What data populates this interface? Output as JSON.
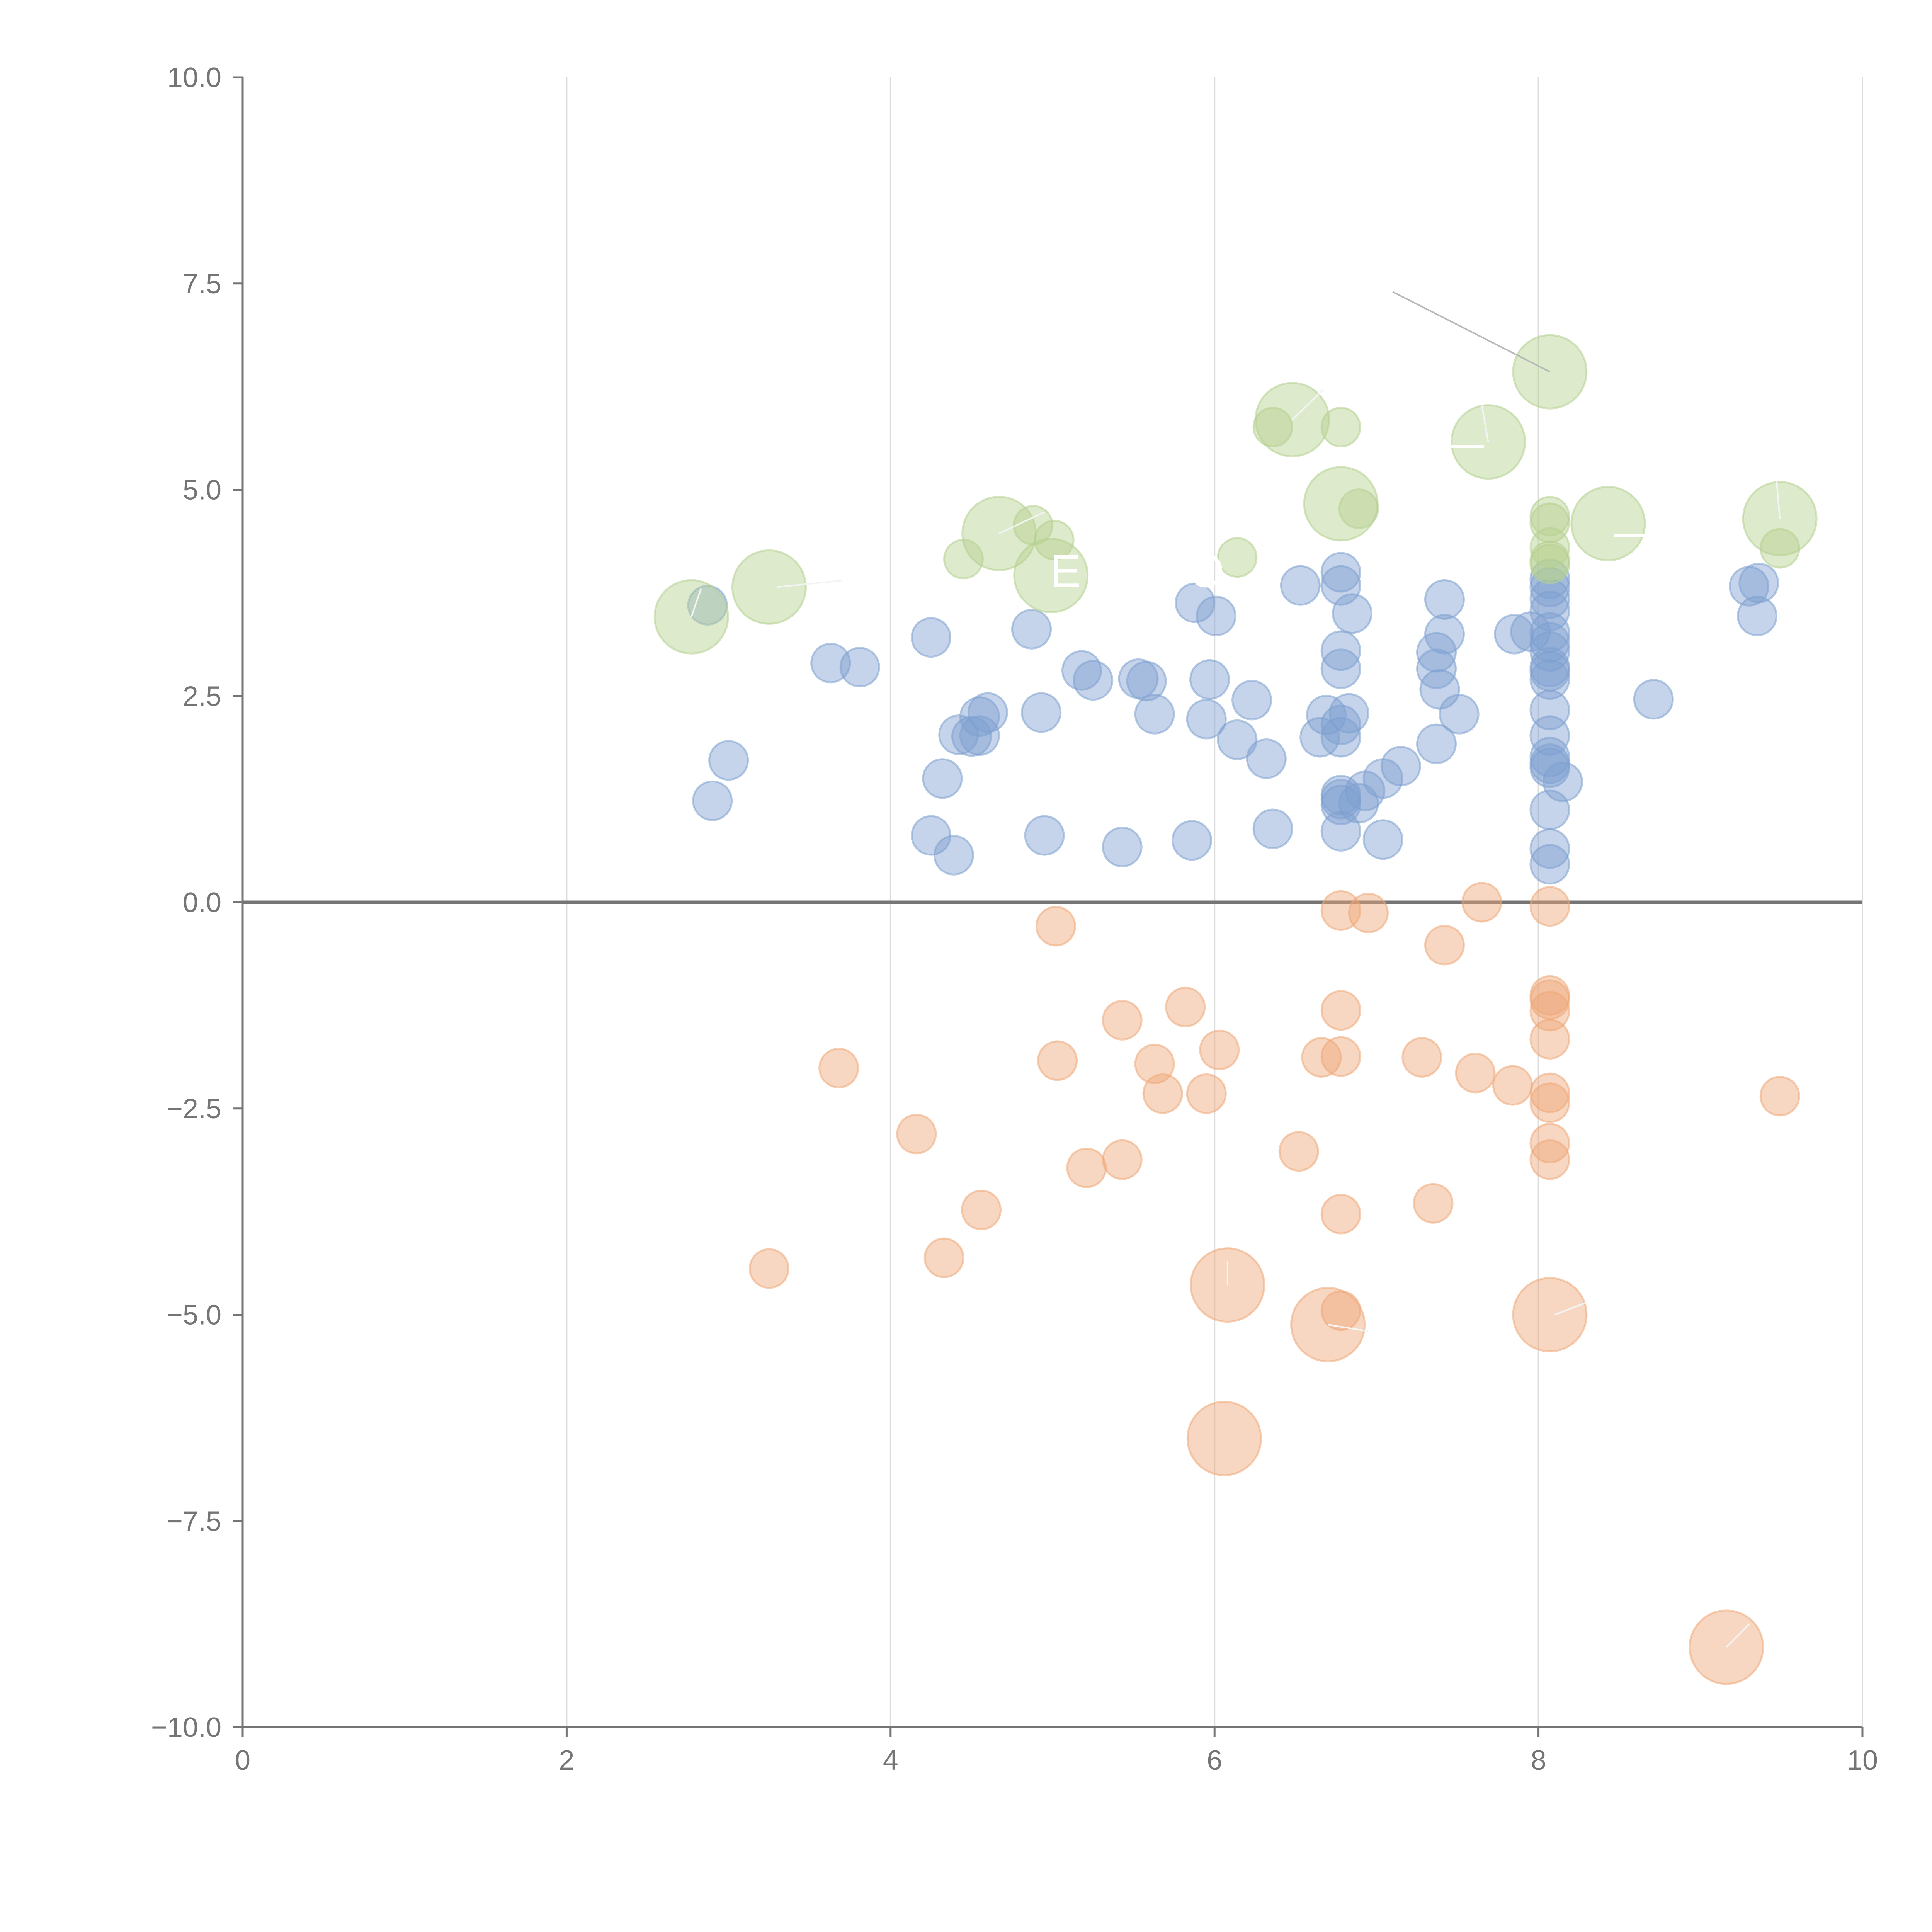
{
  "chart_data": {
    "type": "scatter",
    "title": "",
    "xlabel": "",
    "ylabel": "",
    "xlim": [
      0,
      10
    ],
    "ylim": [
      -10,
      10
    ],
    "x_ticks": [
      0,
      2,
      4,
      6,
      8,
      10
    ],
    "y_ticks": [
      -10.0,
      -7.5,
      -5.0,
      -2.5,
      0.0,
      2.5,
      5.0,
      7.5,
      10.0
    ],
    "x_tick_labels": [
      "0",
      "2",
      "4",
      "6",
      "8",
      "10"
    ],
    "y_tick_labels": [
      "−10.0",
      "−7.5",
      "−5.0",
      "−2.5",
      "0.0",
      "2.5",
      "5.0",
      "7.5",
      "10.0"
    ],
    "x_grid": true,
    "y_grid": false,
    "reference_line_y": 0,
    "colors": {
      "positive": "#7ea0d0",
      "negative": "#eea778",
      "highlight": "#b5d08f",
      "zero_line": "#757575",
      "grid": "#dcdcdc",
      "text": "#757575",
      "leader": "#f4f4f4",
      "leader_dark": "#b8b8b8"
    },
    "series": [
      {
        "name": "positive",
        "size_unit": "small",
        "points": [
          [
            2.87,
            3.6
          ],
          [
            2.9,
            1.23
          ],
          [
            3.0,
            1.72
          ],
          [
            3.63,
            2.9
          ],
          [
            3.81,
            2.85
          ],
          [
            4.25,
            3.21
          ],
          [
            4.25,
            0.81
          ],
          [
            4.32,
            1.5
          ],
          [
            4.39,
            0.57
          ],
          [
            4.42,
            2.03
          ],
          [
            4.5,
            2.01
          ],
          [
            4.55,
            2.02
          ],
          [
            4.55,
            2.25
          ],
          [
            4.6,
            2.3
          ],
          [
            4.87,
            3.31
          ],
          [
            4.93,
            2.3
          ],
          [
            4.95,
            0.81
          ],
          [
            5.18,
            2.81
          ],
          [
            5.25,
            2.69
          ],
          [
            5.43,
            0.67
          ],
          [
            5.53,
            2.71
          ],
          [
            5.58,
            2.68
          ],
          [
            5.63,
            2.28
          ],
          [
            5.86,
            0.75
          ],
          [
            5.88,
            3.63
          ],
          [
            5.95,
            2.22
          ],
          [
            5.97,
            2.7
          ],
          [
            6.01,
            3.47
          ],
          [
            6.14,
            1.97
          ],
          [
            6.23,
            2.45
          ],
          [
            6.32,
            1.74
          ],
          [
            6.36,
            0.89
          ],
          [
            6.53,
            3.84
          ],
          [
            6.65,
            2.0
          ],
          [
            6.69,
            2.27
          ],
          [
            6.78,
            4.0
          ],
          [
            6.78,
            3.84
          ],
          [
            6.78,
            3.05
          ],
          [
            6.78,
            2.83
          ],
          [
            6.78,
            2.15
          ],
          [
            6.78,
            2.0
          ],
          [
            6.78,
            1.3
          ],
          [
            6.78,
            1.25
          ],
          [
            6.78,
            1.18
          ],
          [
            6.78,
            0.86
          ],
          [
            6.83,
            2.29
          ],
          [
            6.85,
            3.5
          ],
          [
            6.89,
            1.2
          ],
          [
            6.93,
            1.35
          ],
          [
            7.04,
            0.76
          ],
          [
            7.04,
            1.5
          ],
          [
            7.15,
            1.65
          ],
          [
            7.37,
            1.92
          ],
          [
            7.37,
            3.03
          ],
          [
            7.37,
            2.83
          ],
          [
            7.39,
            2.58
          ],
          [
            7.42,
            3.67
          ],
          [
            7.42,
            3.25
          ],
          [
            7.51,
            2.28
          ],
          [
            7.85,
            3.25
          ],
          [
            7.95,
            3.28
          ],
          [
            8.07,
            3.92
          ],
          [
            8.07,
            3.82
          ],
          [
            8.07,
            3.68
          ],
          [
            8.07,
            3.53
          ],
          [
            8.07,
            3.27
          ],
          [
            8.07,
            3.15
          ],
          [
            8.07,
            3.04
          ],
          [
            8.07,
            2.85
          ],
          [
            8.07,
            2.8
          ],
          [
            8.07,
            2.7
          ],
          [
            8.07,
            2.33
          ],
          [
            8.07,
            2.02
          ],
          [
            8.07,
            1.76
          ],
          [
            8.07,
            1.68
          ],
          [
            8.07,
            1.63
          ],
          [
            8.07,
            1.12
          ],
          [
            8.07,
            0.65
          ],
          [
            8.07,
            0.46
          ],
          [
            8.15,
            1.46
          ],
          [
            8.71,
            2.46
          ],
          [
            9.3,
            3.83
          ],
          [
            9.36,
            3.87
          ],
          [
            9.35,
            3.47
          ]
        ]
      },
      {
        "name": "negative",
        "size_unit": "small",
        "points": [
          [
            3.25,
            -4.44
          ],
          [
            3.68,
            -2.01
          ],
          [
            4.16,
            -2.81
          ],
          [
            4.33,
            -4.31
          ],
          [
            4.56,
            -3.73
          ],
          [
            5.02,
            -0.29
          ],
          [
            5.03,
            -1.92
          ],
          [
            5.21,
            -3.22
          ],
          [
            5.43,
            -1.43
          ],
          [
            5.43,
            -3.12
          ],
          [
            5.63,
            -1.96
          ],
          [
            5.68,
            -2.32
          ],
          [
            5.82,
            -1.27
          ],
          [
            5.95,
            -2.32
          ],
          [
            6.03,
            -1.79
          ],
          [
            6.52,
            -3.02
          ],
          [
            6.66,
            -1.88
          ],
          [
            6.78,
            -0.1
          ],
          [
            6.78,
            -1.31
          ],
          [
            6.78,
            -1.87
          ],
          [
            6.78,
            -3.78
          ],
          [
            6.78,
            -4.95
          ],
          [
            6.95,
            -0.13
          ],
          [
            7.28,
            -1.88
          ],
          [
            7.35,
            -3.65
          ],
          [
            7.42,
            -0.52
          ],
          [
            7.61,
            -2.07
          ],
          [
            7.65,
            0.0
          ],
          [
            7.84,
            -2.22
          ],
          [
            8.07,
            -0.05
          ],
          [
            8.07,
            -1.13
          ],
          [
            8.07,
            -1.18
          ],
          [
            8.07,
            -1.32
          ],
          [
            8.07,
            -1.66
          ],
          [
            8.07,
            -2.31
          ],
          [
            8.07,
            -2.43
          ],
          [
            8.07,
            -2.92
          ],
          [
            8.07,
            -3.12
          ],
          [
            9.49,
            -2.35
          ]
        ]
      },
      {
        "name": "negative-large",
        "size_unit": "large",
        "points": [
          [
            6.08,
            -4.64
          ],
          [
            6.7,
            -5.12
          ],
          [
            8.07,
            -5.0
          ],
          [
            6.06,
            -6.5
          ],
          [
            9.16,
            -9.03
          ]
        ]
      },
      {
        "name": "highlight",
        "size_unit": "small",
        "points": [
          [
            4.45,
            4.16
          ],
          [
            4.88,
            4.57
          ],
          [
            5.01,
            4.39
          ],
          [
            6.14,
            4.18
          ],
          [
            6.36,
            5.76
          ],
          [
            6.78,
            5.76
          ],
          [
            6.89,
            4.77
          ],
          [
            8.07,
            4.68
          ],
          [
            8.07,
            4.6
          ],
          [
            8.07,
            4.3
          ],
          [
            8.07,
            4.14
          ],
          [
            8.07,
            4.1
          ],
          [
            9.49,
            4.29
          ]
        ]
      },
      {
        "name": "highlight-large",
        "size_unit": "large",
        "points": [
          [
            2.77,
            3.46
          ],
          [
            3.25,
            3.82
          ],
          [
            4.67,
            4.47
          ],
          [
            4.99,
            3.96
          ],
          [
            6.48,
            5.85
          ],
          [
            6.78,
            4.83
          ],
          [
            7.69,
            5.58
          ],
          [
            8.07,
            6.43
          ],
          [
            8.43,
            4.59
          ],
          [
            9.49,
            4.65
          ]
        ]
      }
    ],
    "annotations": [
      {
        "label": "",
        "x": 2.77,
        "y": 3.46,
        "from": [
          2.77,
          3.46
        ],
        "to": [
          2.83,
          3.8
        ],
        "style": "light"
      },
      {
        "label": "",
        "x": 3.25,
        "y": 3.82,
        "from": [
          3.3,
          3.82
        ],
        "to": [
          3.7,
          3.9
        ],
        "style": "light"
      },
      {
        "label": "",
        "x": 4.67,
        "y": 4.47,
        "from": [
          4.67,
          4.47
        ],
        "to": [
          4.95,
          4.73
        ],
        "style": "light"
      },
      {
        "label": "E",
        "x": 5.08,
        "y": 3.82,
        "from": null,
        "to": null,
        "style": "light"
      },
      {
        "label": "O",
        "x": 5.95,
        "y": 3.82,
        "from": null,
        "to": null,
        "style": "light"
      },
      {
        "label": "",
        "x": 6.48,
        "y": 5.85,
        "from": [
          6.48,
          5.85
        ],
        "to": [
          6.67,
          6.21
        ],
        "style": "light"
      },
      {
        "label": "",
        "x": 7.69,
        "y": 5.58,
        "from": [
          7.69,
          5.58
        ],
        "to": [
          7.65,
          6.02
        ],
        "style": "light"
      },
      {
        "label": "—",
        "x": 7.52,
        "y": 5.38,
        "from": null,
        "to": null,
        "style": "light"
      },
      {
        "label": "—",
        "x": 8.61,
        "y": 4.3,
        "from": null,
        "to": null,
        "style": "light"
      },
      {
        "label": "",
        "x": 8.07,
        "y": 6.43,
        "from": [
          8.07,
          6.43
        ],
        "to": [
          7.1,
          7.4
        ],
        "style": "dark"
      },
      {
        "label": "",
        "x": 9.49,
        "y": 4.65,
        "from": [
          9.49,
          4.65
        ],
        "to": [
          9.47,
          5.11
        ],
        "style": "light"
      },
      {
        "label": "",
        "x": 6.08,
        "y": -4.64,
        "from": [
          6.08,
          -4.64
        ],
        "to": [
          6.08,
          -4.35
        ],
        "style": "light"
      },
      {
        "label": "",
        "x": 6.7,
        "y": -5.12,
        "from": [
          6.7,
          -5.12
        ],
        "to": [
          6.95,
          -5.2
        ],
        "style": "light"
      },
      {
        "label": "",
        "x": 8.07,
        "y": -5.0,
        "from": [
          8.1,
          -5.0
        ],
        "to": [
          8.3,
          -4.85
        ],
        "style": "light"
      },
      {
        "label": "",
        "x": 9.16,
        "y": -9.03,
        "from": [
          9.16,
          -9.03
        ],
        "to": [
          9.3,
          -8.75
        ],
        "style": "light"
      }
    ]
  }
}
